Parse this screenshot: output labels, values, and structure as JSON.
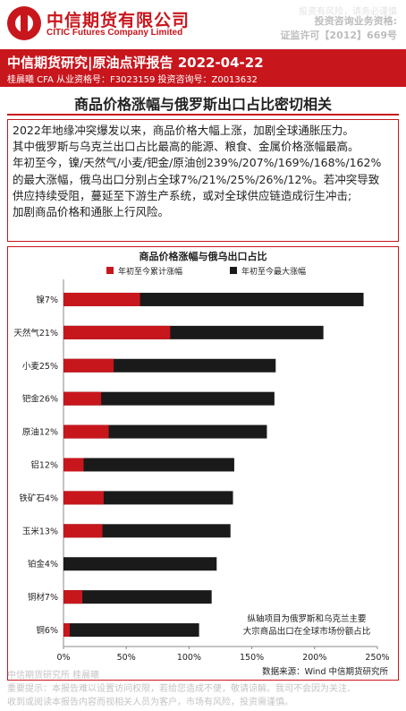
{
  "header": {
    "company_cn": "中信期货有限公司",
    "company_en": "CITIC Futures Company Limited",
    "watermark": "投资有风险，请务必谨慎",
    "license_line1": "投资咨询业务资格:",
    "license_line2": "证监许可【2012】669号"
  },
  "banner": {
    "title": "中信期货研究|原油点评报告 2022-04-22",
    "analyst": "桂晨曦 CFA 从业资格号：F3023159 投资咨询号：Z0013632"
  },
  "section_title": "商品价格涨幅与俄罗斯出口占比密切相关",
  "paragraph_lines": [
    "2022年地缘冲突爆发以来，商品价格大幅上涨，加剧全球通胀压力。",
    "其中俄罗斯与乌克兰出口占比最高的能源、粮食、金属价格涨幅最高。",
    "年初至今，镍/天然气/小麦/钯金/原油创239%/207%/169%/168%/162%",
    "的最大涨幅，俄乌出口分别占全球7%/21%/25%/26%/12%。若冲突导致",
    "供应持续受阻，蔓延至下游生产系统，或对全球供应链造成衍生冲击;",
    "加剧商品价格和通胀上行风险。"
  ],
  "chart_data": {
    "type": "bar",
    "orientation": "horizontal",
    "title": "商品价格涨幅与俄乌出口占比",
    "categories": [
      "镍7%",
      "天然气21%",
      "小麦25%",
      "钯金26%",
      "原油12%",
      "铝12%",
      "铁矿石4%",
      "玉米13%",
      "铂金4%",
      "铜材7%",
      "铜6%"
    ],
    "series": [
      {
        "name": "年初至今累计涨幅",
        "color": "#c8161d",
        "values": [
          61,
          85,
          40,
          30,
          36,
          16,
          32,
          31,
          0,
          15,
          5
        ]
      },
      {
        "name": "年初至今最大涨幅",
        "color": "#1a1a1a",
        "values": [
          239,
          207,
          169,
          168,
          162,
          136,
          135,
          133,
          122,
          118,
          108
        ]
      }
    ],
    "xlim": [
      0,
      250
    ],
    "x_ticks": [
      "0%",
      "50%",
      "100%",
      "150%",
      "200%",
      "250%"
    ],
    "grid": false,
    "legend_position": "top",
    "annotation_line1": "纵轴项目为俄罗斯和乌克兰主要",
    "annotation_line2": "大宗商品出口在全球市场份额占比",
    "source": "数据来源：Wind 中信期货研究所"
  },
  "footer": {
    "line1": "中信期货研究所 桂晨曦",
    "line2": "重要提示：本报告难以设置访问权限，若给您造成不便，敬请谅解。我司不会因为关注、",
    "line3": "收到或阅读本报告内容而视相关人员为客户，市场有风险，投资需谨慎。"
  }
}
